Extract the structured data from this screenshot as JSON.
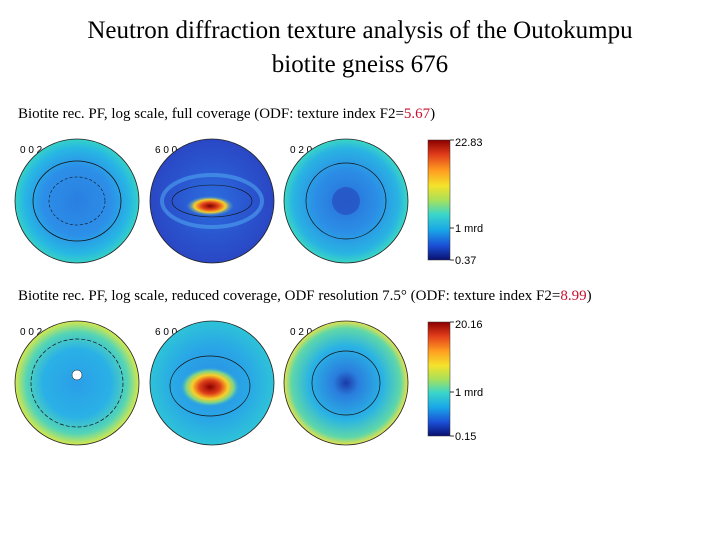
{
  "slide": {
    "title_line1": "Neutron diffraction texture analysis of the Outokumpu",
    "title_line2": "biotite gneiss 676"
  },
  "panel_full": {
    "caption_prefix": "Biotite rec. PF, log scale, full coverage (ODF: texture index F2=",
    "f2_value": "5.67",
    "caption_suffix": ")",
    "pole_figures": [
      {
        "label": "0 0 2"
      },
      {
        "label": "6 0 0"
      },
      {
        "label": "0 2 0"
      }
    ],
    "scale": {
      "max": "22.83",
      "mid": "1 mrd",
      "min": "0.37"
    }
  },
  "panel_reduced": {
    "caption_prefix": "Biotite rec. PF, log scale, reduced coverage, ODF resolution 7.5° (ODF: texture index F2=",
    "f2_value": "8.99",
    "caption_suffix": ")",
    "pole_figures": [
      {
        "label": "0 0 2"
      },
      {
        "label": "6 0 0"
      },
      {
        "label": "0 2 0"
      }
    ],
    "scale": {
      "max": "20.16",
      "mid": "1 mrd",
      "min": "0.15"
    }
  },
  "colors": {
    "highlight": "#c8102e"
  }
}
